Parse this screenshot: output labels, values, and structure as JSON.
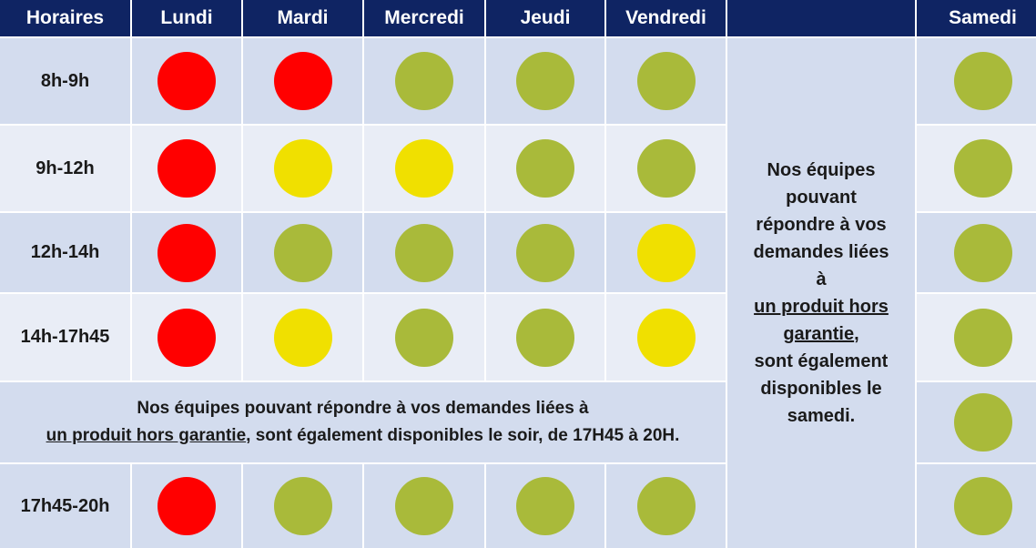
{
  "header": {
    "times": "Horaires",
    "days": [
      "Lundi",
      "Mardi",
      "Mercredi",
      "Jeudi",
      "Vendredi",
      "",
      "Samedi"
    ]
  },
  "colors": {
    "red": "#ff0000",
    "yellow": "#f0e000",
    "green": "#a9ba3a",
    "header_bg": "#0f2463"
  },
  "rows": [
    {
      "time": "8h-9h",
      "status": [
        "red",
        "red",
        "green",
        "green",
        "green"
      ],
      "samedi": "green"
    },
    {
      "time": "9h-12h",
      "status": [
        "red",
        "yellow",
        "yellow",
        "green",
        "green"
      ],
      "samedi": "green"
    },
    {
      "time": "12h-14h",
      "status": [
        "red",
        "green",
        "green",
        "green",
        "yellow"
      ],
      "samedi": "green"
    },
    {
      "time": "14h-17h45",
      "status": [
        "red",
        "yellow",
        "green",
        "green",
        "yellow"
      ],
      "samedi": "green"
    },
    {
      "time": "17h45-20h",
      "status": [
        "red",
        "green",
        "green",
        "green",
        "green"
      ],
      "samedi": "green"
    }
  ],
  "banner_row_samedi": "green",
  "side_note": {
    "line1": "Nos équipes",
    "line2": "pouvant",
    "line3": "répondre à vos",
    "line4": "demandes liées",
    "line5": "à",
    "line6": "un produit hors",
    "line7": "garantie",
    "line7_suffix": ",",
    "line8": "sont également",
    "line9": "disponibles le",
    "line10": "samedi."
  },
  "banner": {
    "line1": "Nos équipes pouvant répondre à vos demandes liées à",
    "underlined": "un produit hors garantie",
    "line2_rest": ", sont également disponibles le soir, de 17H45 à 20H."
  }
}
